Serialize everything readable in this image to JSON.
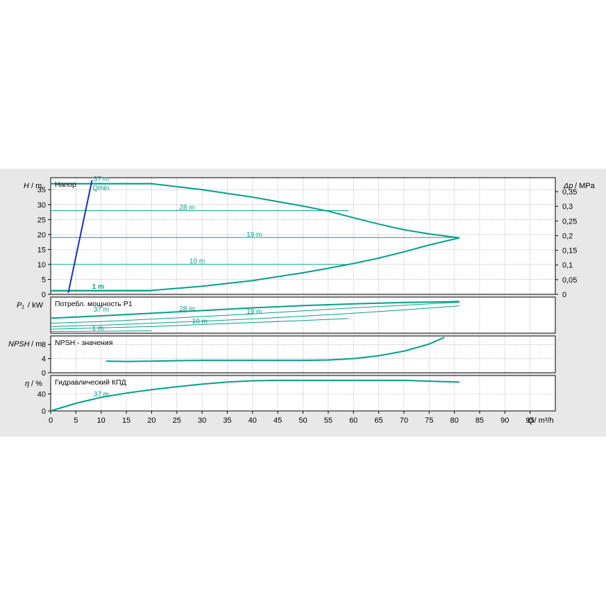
{
  "colors": {
    "curve": "#00a08a",
    "qmin": "#1f2fb5",
    "grid": "#9a9a9a",
    "panel_bg": "#e8e8e8"
  },
  "chart_data": {
    "type": "line",
    "x_axis": {
      "label_q": "Q",
      "label_unit": "/ m³/h",
      "range": [
        0,
        100
      ],
      "ticks": [
        0,
        5,
        10,
        15,
        20,
        25,
        30,
        35,
        40,
        45,
        50,
        55,
        60,
        65,
        70,
        75,
        80,
        85,
        90,
        95
      ]
    },
    "head": {
      "title": "Напор",
      "ylabel_sym": "H",
      "ylabel_unit": "/ m",
      "ylabel_right_sym": "Δp",
      "ylabel_right_unit": "/ MPa",
      "ylim": [
        0,
        39
      ],
      "yticks": [
        "0",
        "5",
        "10",
        "15",
        "20",
        "25",
        "30",
        "35"
      ],
      "yticks_right": [
        "0",
        "0,05",
        "0,1",
        "0,15",
        "0,2",
        "0,25",
        "0,3",
        "0,35"
      ],
      "setpoint_lines": [
        {
          "name": "37 m",
          "y": 37,
          "x_end": 20
        },
        {
          "name": "28 m",
          "y": 28,
          "x_end": 59
        },
        {
          "name": "19 m",
          "y": 19,
          "x_end": 81
        },
        {
          "name": "10 m",
          "y": 10,
          "x_end": 59
        },
        {
          "name": "1 m",
          "y": 1.2,
          "x_end": 20
        }
      ],
      "max_curve": {
        "x": [
          0,
          20,
          30,
          40,
          50,
          55,
          60,
          65,
          70,
          75,
          81
        ],
        "y": [
          37,
          37,
          35,
          32.5,
          29.5,
          27.8,
          25.6,
          23.5,
          21.6,
          20.2,
          18.9
        ]
      },
      "min_curve": {
        "x": [
          0,
          20,
          30,
          40,
          50,
          55,
          60,
          65,
          70,
          75,
          81
        ],
        "y": [
          1.2,
          1.3,
          2.7,
          4.6,
          7.2,
          8.7,
          10.3,
          12.1,
          14.2,
          16.5,
          18.9
        ]
      },
      "qmin_line": {
        "x": [
          3.5,
          8.2
        ],
        "y": [
          0.5,
          38.2
        ]
      },
      "labels": {
        "top_setpoint": "37 m",
        "qmin": "Qmin",
        "l28": "28 m",
        "l19": "19 m",
        "l10": "10 m",
        "l1": "1 m"
      }
    },
    "power": {
      "title": "Потребл. мощность P1",
      "ylabel_sym": "P₁",
      "ylabel_unit": "/ kW",
      "curves": [
        {
          "name": "37 m",
          "x": [
            0,
            10,
            20,
            30,
            40,
            50,
            60,
            70,
            81
          ],
          "y": [
            0.45,
            0.52,
            0.6,
            0.68,
            0.76,
            0.83,
            0.88,
            0.92,
            0.95
          ]
        },
        {
          "name": "28 m",
          "x": [
            0,
            10,
            20,
            30,
            40,
            50,
            60,
            70,
            81
          ],
          "y": [
            0.3,
            0.35,
            0.42,
            0.5,
            0.58,
            0.67,
            0.76,
            0.84,
            0.93
          ]
        },
        {
          "name": "19 m",
          "x": [
            0,
            10,
            20,
            30,
            40,
            50,
            60,
            70,
            81
          ],
          "y": [
            0.2,
            0.24,
            0.3,
            0.36,
            0.43,
            0.51,
            0.6,
            0.7,
            0.82
          ]
        },
        {
          "name": "10 m",
          "x": [
            0,
            10,
            20,
            30,
            40,
            50,
            59
          ],
          "y": [
            0.12,
            0.16,
            0.2,
            0.26,
            0.32,
            0.38,
            0.44
          ]
        },
        {
          "name": "1 m",
          "x": [
            0,
            10,
            20
          ],
          "y": [
            0.05,
            0.06,
            0.07
          ]
        }
      ],
      "labels": {
        "l37": "37 m",
        "l28": "28 m",
        "l19": "19 m",
        "l10": "10 m",
        "l1": "1 m"
      }
    },
    "npsh": {
      "title": "NPSH - значения",
      "ylabel_sym": "NPSH",
      "ylabel_unit": "/ m",
      "ylim": [
        0,
        10
      ],
      "yticks": [
        "0",
        "4",
        "8"
      ],
      "curve": {
        "x": [
          11,
          15,
          20,
          30,
          40,
          50,
          55,
          60,
          65,
          70,
          75,
          78
        ],
        "y": [
          3.3,
          3.2,
          3.3,
          3.5,
          3.5,
          3.5,
          3.6,
          4.0,
          4.8,
          6.1,
          8.1,
          10.0
        ]
      }
    },
    "efficiency": {
      "title": "Гидравлический КПД",
      "ylabel_sym": "η",
      "ylabel_unit": "/ %",
      "ylim": [
        0,
        80
      ],
      "yticks": [
        "0",
        "40"
      ],
      "curve": {
        "name": "37 m",
        "x": [
          0,
          5,
          10,
          15,
          20,
          25,
          30,
          35,
          40,
          45,
          50,
          55,
          60,
          65,
          70,
          75,
          81
        ],
        "y": [
          0,
          18,
          32,
          42,
          50,
          57,
          63,
          68,
          71,
          72,
          72,
          72,
          72,
          72,
          72,
          70,
          68
        ]
      },
      "label": "37 m"
    }
  }
}
